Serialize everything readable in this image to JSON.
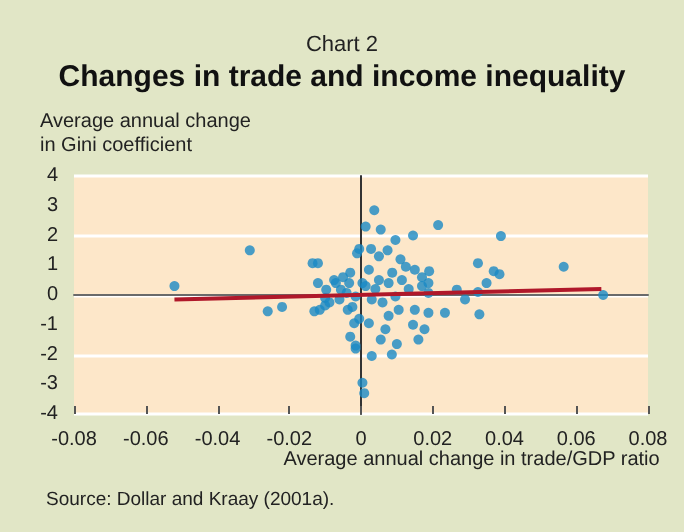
{
  "chart_data": {
    "type": "scatter",
    "title": "Changes in trade and income inequality",
    "subtitle": "Chart 2",
    "xlabel": "Average annual change in trade/GDP ratio",
    "ylabel": "Average annual change\nin Gini coefficient",
    "annotations": [
      "Source: Dollar and Kraay (2001a)."
    ],
    "xlim": [
      -0.08,
      0.08
    ],
    "xticks": [
      -0.08,
      -0.06,
      -0.04,
      -0.02,
      0,
      0.02,
      0.04,
      0.06,
      0.08
    ],
    "ylim": [
      -4,
      4
    ],
    "yticks": [
      -4,
      -3,
      -2,
      -1,
      0,
      1,
      2,
      3,
      4
    ],
    "grid": "y",
    "marker": "circle",
    "series": [
      {
        "color": "#1a8ac4",
        "x": [
          -0.052,
          -0.031,
          -0.026,
          -0.022,
          -0.0135,
          -0.012,
          -0.013,
          -0.0115,
          -0.01,
          -0.012,
          -0.01,
          -0.0075,
          -0.0056,
          -0.0037,
          -0.0019,
          -0.0015,
          -0.003,
          -0.0011,
          0.0037,
          0.0013,
          0.0055,
          0.0215,
          0.039,
          0.0145,
          0.0096,
          0.0074,
          0.0028,
          -0.0005,
          0.011,
          0.005,
          0.0326,
          0.0565,
          0.037,
          0.0386,
          0.019,
          0.017,
          0.0267,
          0.029,
          0.0326,
          0.035,
          0.0675,
          0.0234,
          0.033,
          0.0188,
          0.0145,
          0.0177,
          0.016,
          0.01,
          0.0086,
          0.003,
          -0.0015,
          -0.003,
          0.0004,
          0.0009,
          0.0055,
          0.0068,
          -0.005,
          -0.007,
          -0.004,
          -0.0024,
          0.0004,
          0.0022,
          0.004,
          0.006,
          0.0077,
          0.0096,
          0.0114,
          0.0133,
          0.015,
          0.017,
          0.0188,
          -0.0005,
          0.0022,
          0.0077,
          0.0105,
          0.003,
          0.0013,
          0.005,
          0.0087,
          0.0125,
          0.015,
          0.0188,
          -0.0015,
          -0.0033,
          -0.006,
          -0.0088,
          -0.0097
        ],
        "values": [
          0.3,
          1.5,
          -0.55,
          -0.4,
          1.07,
          1.07,
          -0.55,
          -0.5,
          -0.35,
          0.4,
          -0.1,
          0.5,
          0.18,
          -0.5,
          -0.95,
          -1.7,
          0.75,
          1.4,
          2.85,
          2.3,
          2.2,
          2.35,
          1.98,
          2.0,
          1.85,
          1.5,
          1.55,
          1.55,
          1.2,
          1.3,
          1.07,
          0.95,
          0.8,
          0.7,
          0.8,
          0.6,
          0.18,
          -0.15,
          0.1,
          0.4,
          0,
          -0.6,
          -0.65,
          -0.6,
          -1.0,
          -1.15,
          -1.5,
          -1.65,
          -2.0,
          -2.05,
          -1.8,
          -1.4,
          -2.95,
          -3.3,
          -1.5,
          -1.15,
          0.6,
          0.4,
          0.07,
          -0.4,
          0.4,
          0.85,
          0.2,
          -0.25,
          0.4,
          -0.05,
          0.5,
          0.2,
          -0.5,
          0.3,
          0.07,
          -0.8,
          -0.95,
          -0.7,
          -0.5,
          -0.15,
          0.3,
          0.5,
          0.75,
          0.95,
          0.85,
          0.4,
          -0.05,
          0.4,
          -0.15,
          -0.25,
          0.18
        ]
      },
      {
        "type": "line",
        "color": "#b0182a",
        "marker": "none",
        "x": [
          -0.052,
          0.067
        ],
        "values": [
          -0.15,
          0.2
        ]
      }
    ]
  }
}
